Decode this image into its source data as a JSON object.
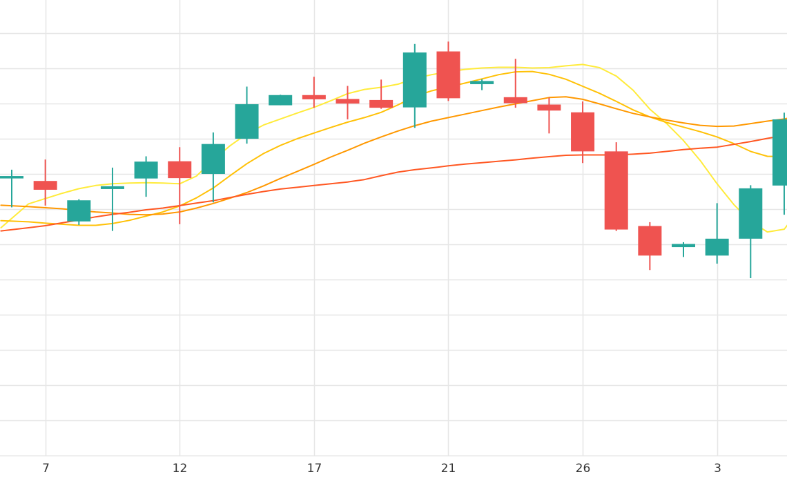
{
  "colors": {
    "up": "#26a69a",
    "down": "#ef5350",
    "grid": "#e6e6e6",
    "ma": [
      "#ffeb3b",
      "#ffc107",
      "#ff9800",
      "#ff5722"
    ]
  },
  "chart_data": {
    "type": "candlestick",
    "x_ticks": [
      {
        "i": 1,
        "label": "7"
      },
      {
        "i": 5,
        "label": "12"
      },
      {
        "i": 9,
        "label": "17"
      },
      {
        "i": 13,
        "label": "21"
      },
      {
        "i": 17,
        "label": "26"
      },
      {
        "i": 21,
        "label": "3"
      }
    ],
    "y_grid": [
      0,
      10,
      20,
      30,
      40,
      50,
      60,
      70,
      80,
      90,
      100,
      110,
      120,
      130
    ],
    "ylim": [
      0,
      130
    ],
    "xlim": [
      -0.32,
      23.1
    ],
    "candles": [
      {
        "o": 79.4,
        "h": 81.2,
        "l": 70.5,
        "c": 79.4
      },
      {
        "o": 78.0,
        "h": 84.1,
        "l": 71.0,
        "c": 75.5
      },
      {
        "o": 66.5,
        "h": 72.8,
        "l": 65.5,
        "c": 72.5
      },
      {
        "o": 75.7,
        "h": 81.8,
        "l": 63.8,
        "c": 76.5
      },
      {
        "o": 78.7,
        "h": 85.0,
        "l": 73.5,
        "c": 83.5
      },
      {
        "o": 83.6,
        "h": 87.6,
        "l": 65.7,
        "c": 78.8
      },
      {
        "o": 80.0,
        "h": 91.8,
        "l": 71.9,
        "c": 88.5
      },
      {
        "o": 90.0,
        "h": 104.8,
        "l": 88.6,
        "c": 99.8
      },
      {
        "o": 99.5,
        "h": 102.5,
        "l": 99.5,
        "c": 102.4
      },
      {
        "o": 102.4,
        "h": 107.6,
        "l": 98.8,
        "c": 101.2
      },
      {
        "o": 101.3,
        "h": 105.0,
        "l": 95.5,
        "c": 100.0
      },
      {
        "o": 101.0,
        "h": 106.8,
        "l": 98.5,
        "c": 98.8
      },
      {
        "o": 98.9,
        "h": 116.9,
        "l": 93.1,
        "c": 114.5
      },
      {
        "o": 114.8,
        "h": 117.6,
        "l": 100.7,
        "c": 101.5
      },
      {
        "o": 105.5,
        "h": 106.9,
        "l": 103.8,
        "c": 106.4
      },
      {
        "o": 101.8,
        "h": 112.7,
        "l": 98.8,
        "c": 100.1
      },
      {
        "o": 99.7,
        "h": 101.7,
        "l": 91.5,
        "c": 98.0
      },
      {
        "o": 97.5,
        "h": 100.6,
        "l": 83.1,
        "c": 86.4
      },
      {
        "o": 86.4,
        "h": 89.0,
        "l": 63.8,
        "c": 64.2
      },
      {
        "o": 65.2,
        "h": 66.3,
        "l": 52.7,
        "c": 56.8
      },
      {
        "o": 59.2,
        "h": 60.6,
        "l": 56.4,
        "c": 60.1
      },
      {
        "o": 56.8,
        "h": 71.7,
        "l": 54.5,
        "c": 61.6
      },
      {
        "o": 61.6,
        "h": 76.8,
        "l": 50.4,
        "c": 75.9
      },
      {
        "o": 76.7,
        "h": 97.4,
        "l": 68.4,
        "c": 95.5
      }
    ],
    "ma_lines": [
      {
        "x": [
          -0.32,
          0.5,
          1.0,
          1.5,
          2.0,
          2.5,
          3.0,
          3.5,
          4.0,
          4.5,
          5.0,
          5.5,
          6.0,
          6.5,
          7.0,
          7.5,
          8.0,
          8.5,
          9.0,
          9.5,
          10.0,
          10.5,
          11.0,
          11.5,
          12.0,
          12.5,
          13.0,
          13.5,
          14.0,
          14.5,
          15.0,
          15.5,
          16.0,
          16.5,
          17.0,
          17.5,
          18.0,
          18.5,
          19.0,
          19.5,
          20.0,
          20.5,
          21.0,
          21.5,
          22.0,
          22.5,
          23.0,
          23.1
        ],
        "y": [
          64.7,
          71.5,
          73.0,
          74.5,
          75.8,
          76.7,
          77.2,
          77.4,
          77.5,
          77.4,
          77.2,
          79.4,
          84.0,
          88.0,
          91.4,
          93.9,
          95.6,
          97.3,
          98.9,
          100.8,
          102.8,
          104.0,
          104.6,
          105.5,
          107.1,
          108.2,
          109.0,
          109.7,
          110.1,
          110.3,
          110.3,
          110.1,
          110.2,
          110.7,
          111.1,
          110.2,
          107.8,
          103.8,
          98.4,
          94.3,
          89.5,
          83.8,
          77.2,
          71.3,
          66.5,
          63.5,
          64.3,
          65.5
        ]
      },
      {
        "x": [
          -0.32,
          0.5,
          1.0,
          1.5,
          2.0,
          2.5,
          3.0,
          3.5,
          4.0,
          4.5,
          5.0,
          5.5,
          6.0,
          6.5,
          7.0,
          7.5,
          8.0,
          8.5,
          9.0,
          9.5,
          10.0,
          10.5,
          11.0,
          11.5,
          12.0,
          12.5,
          13.0,
          13.5,
          14.0,
          14.5,
          15.0,
          15.5,
          16.0,
          16.5,
          17.0,
          17.5,
          18.0,
          18.5,
          19.0,
          19.5,
          20.0,
          20.5,
          21.0,
          21.5,
          22.0,
          22.5,
          23.0,
          23.1
        ],
        "y": [
          66.7,
          66.4,
          66.0,
          65.7,
          65.4,
          65.4,
          65.9,
          66.8,
          68.0,
          69.2,
          70.9,
          73.2,
          76.0,
          79.5,
          82.9,
          85.8,
          88.1,
          90.0,
          91.6,
          93.2,
          94.7,
          96.0,
          97.5,
          99.6,
          102.0,
          103.6,
          104.7,
          105.8,
          107.0,
          108.2,
          109.0,
          109.1,
          108.3,
          106.9,
          104.9,
          102.9,
          100.6,
          98.2,
          96.2,
          94.6,
          93.3,
          92.0,
          90.5,
          88.6,
          86.4,
          85.0,
          84.9,
          85.3
        ]
      },
      {
        "x": [
          -0.32,
          0.5,
          1.0,
          1.5,
          2.0,
          2.5,
          3.0,
          3.5,
          4.0,
          4.5,
          5.0,
          5.5,
          6.0,
          6.5,
          7.0,
          7.5,
          8.0,
          8.5,
          9.0,
          9.5,
          10.0,
          10.5,
          11.0,
          11.5,
          12.0,
          12.5,
          13.0,
          13.5,
          14.0,
          14.5,
          15.0,
          15.5,
          16.0,
          16.5,
          17.0,
          17.5,
          18.0,
          18.5,
          19.0,
          19.5,
          20.0,
          20.5,
          21.0,
          21.5,
          22.0,
          22.5,
          23.0,
          23.1
        ],
        "y": [
          71.1,
          70.7,
          70.4,
          70.1,
          69.6,
          69.2,
          68.9,
          68.5,
          68.4,
          68.6,
          69.2,
          70.3,
          71.6,
          73.1,
          74.7,
          76.6,
          78.7,
          80.7,
          82.7,
          84.8,
          86.7,
          88.7,
          90.5,
          92.2,
          93.7,
          95.0,
          96.0,
          97.0,
          98.0,
          99.0,
          99.9,
          100.8,
          101.7,
          101.9,
          101.2,
          99.9,
          98.5,
          97.2,
          96.2,
          95.3,
          94.5,
          93.8,
          93.5,
          93.6,
          94.3,
          95.0,
          95.6,
          95.8
        ]
      },
      {
        "x": [
          -0.32,
          0.5,
          1.0,
          1.5,
          2.0,
          2.5,
          3.0,
          3.5,
          4.0,
          4.5,
          5.0,
          5.5,
          6.0,
          6.5,
          7.0,
          7.5,
          8.0,
          8.5,
          9.0,
          9.5,
          10.0,
          10.5,
          11.0,
          11.5,
          12.0,
          12.5,
          13.0,
          13.5,
          14.0,
          14.5,
          15.0,
          15.5,
          16.0,
          16.5,
          17.0,
          17.5,
          18.0,
          18.5,
          19.0,
          19.5,
          20.0,
          20.5,
          21.0,
          21.5,
          22.0,
          22.5,
          23.0,
          23.1
        ],
        "y": [
          63.8,
          64.7,
          65.3,
          66.1,
          66.9,
          67.8,
          68.5,
          69.1,
          69.8,
          70.3,
          71.0,
          71.7,
          72.4,
          73.3,
          74.2,
          75.0,
          75.7,
          76.2,
          76.7,
          77.2,
          77.7,
          78.4,
          79.5,
          80.5,
          81.2,
          81.7,
          82.3,
          82.8,
          83.2,
          83.6,
          84.0,
          84.5,
          84.9,
          85.3,
          85.4,
          85.4,
          85.4,
          85.6,
          85.9,
          86.4,
          86.9,
          87.3,
          87.6,
          88.4,
          89.2,
          90.1,
          90.9,
          91.0
        ]
      }
    ]
  }
}
